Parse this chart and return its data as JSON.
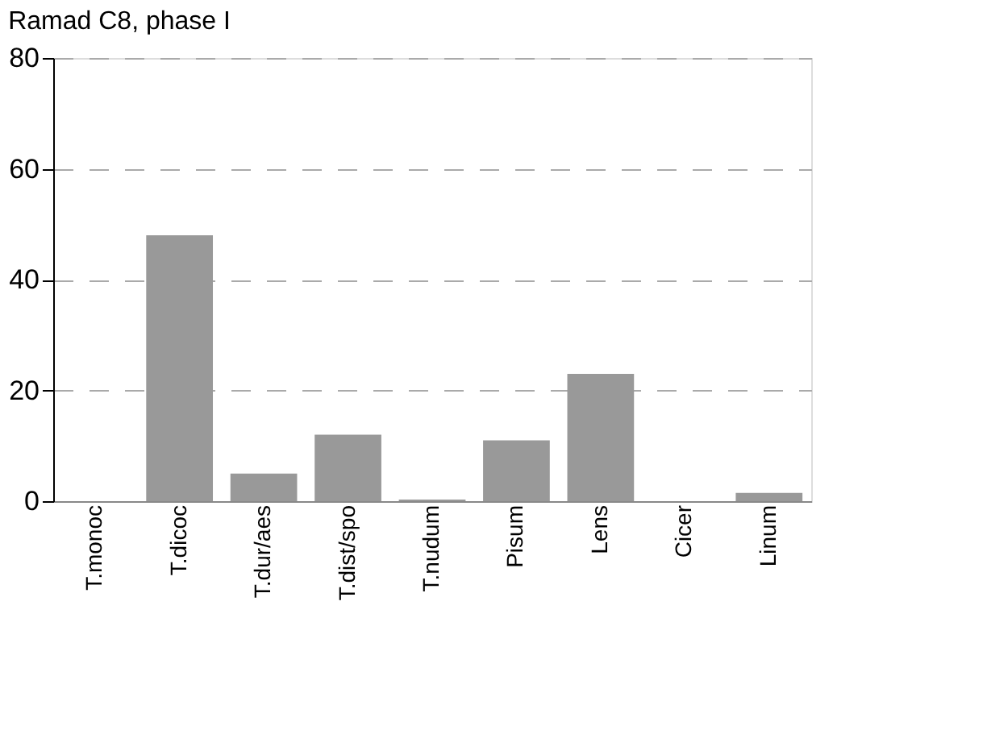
{
  "chart_data": {
    "type": "bar",
    "title": "Ramad C8, phase I",
    "categories": [
      "T.monoc",
      "T.dicoc",
      "T.dur/aes",
      "T.dist/spo",
      "T.nudum",
      "Pisum",
      "Lens",
      "Cicer",
      "Linum"
    ],
    "values": [
      0,
      48,
      5,
      12,
      0.3,
      11,
      23,
      0,
      1.5
    ],
    "color": "#999999",
    "ylim": [
      0,
      80
    ],
    "yticks": [
      0,
      20,
      40,
      60,
      80
    ],
    "grid": "y",
    "line_style": "dashed"
  }
}
